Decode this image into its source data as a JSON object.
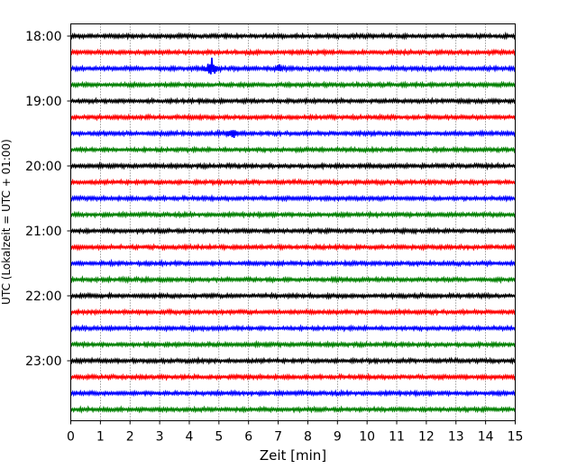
{
  "chart_data": {
    "type": "line",
    "title": "",
    "xlabel": "Zeit  [min]",
    "ylabel": "UTC (Lokalzeit = UTC + 01:00)",
    "xlim": [
      0,
      15
    ],
    "x_ticks": [
      "0",
      "1",
      "2",
      "3",
      "4",
      "5",
      "6",
      "7",
      "8",
      "9",
      "10",
      "11",
      "12",
      "13",
      "14",
      "15"
    ],
    "y_tick_labels": [
      "18:00",
      "19:00",
      "20:00",
      "21:00",
      "22:00",
      "23:00"
    ],
    "grid": "vertical dotted at each minute",
    "trace_interval_minutes": 15,
    "traces": [
      {
        "start": "18:00",
        "color": "#000000"
      },
      {
        "start": "18:15",
        "color": "#ff0000"
      },
      {
        "start": "18:30",
        "color": "#0000ff"
      },
      {
        "start": "18:45",
        "color": "#008000"
      },
      {
        "start": "19:00",
        "color": "#000000"
      },
      {
        "start": "19:15",
        "color": "#ff0000"
      },
      {
        "start": "19:30",
        "color": "#0000ff"
      },
      {
        "start": "19:45",
        "color": "#008000"
      },
      {
        "start": "20:00",
        "color": "#000000"
      },
      {
        "start": "20:15",
        "color": "#ff0000"
      },
      {
        "start": "20:30",
        "color": "#0000ff"
      },
      {
        "start": "20:45",
        "color": "#008000"
      },
      {
        "start": "21:00",
        "color": "#000000"
      },
      {
        "start": "21:15",
        "color": "#ff0000"
      },
      {
        "start": "21:30",
        "color": "#0000ff"
      },
      {
        "start": "21:45",
        "color": "#008000"
      },
      {
        "start": "22:00",
        "color": "#000000"
      },
      {
        "start": "22:15",
        "color": "#ff0000"
      },
      {
        "start": "22:30",
        "color": "#0000ff"
      },
      {
        "start": "22:45",
        "color": "#008000"
      },
      {
        "start": "23:00",
        "color": "#000000"
      },
      {
        "start": "23:15",
        "color": "#ff0000"
      },
      {
        "start": "23:30",
        "color": "#0000ff"
      },
      {
        "start": "23:45",
        "color": "#008000"
      }
    ],
    "events": [
      {
        "trace": "18:30",
        "minute": 4.75,
        "amplitude": "large"
      },
      {
        "trace": "18:30",
        "minute": 7.0,
        "amplitude": "small"
      },
      {
        "trace": "19:30",
        "minute": 5.45,
        "amplitude": "medium"
      }
    ]
  }
}
